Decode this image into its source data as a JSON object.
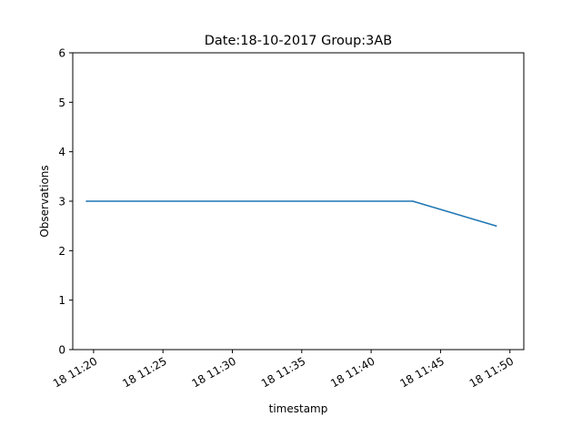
{
  "chart_data": {
    "type": "line",
    "title": "Date:18-10-2017  Group:3AB",
    "xlabel": "timestamp",
    "ylabel": "Observations",
    "x_ticks": [
      {
        "value": "2017-10-18 11:20",
        "label": "18 11:20"
      },
      {
        "value": "2017-10-18 11:25",
        "label": "18 11:25"
      },
      {
        "value": "2017-10-18 11:30",
        "label": "18 11:30"
      },
      {
        "value": "2017-10-18 11:35",
        "label": "18 11:35"
      },
      {
        "value": "2017-10-18 11:40",
        "label": "18 11:40"
      },
      {
        "value": "2017-10-18 11:45",
        "label": "18 11:45"
      },
      {
        "value": "2017-10-18 11:50",
        "label": "18 11:50"
      }
    ],
    "y_ticks": [
      0,
      1,
      2,
      3,
      4,
      5,
      6
    ],
    "xlim": [
      "2017-10-18 11:18:30",
      "2017-10-18 11:51:00"
    ],
    "ylim": [
      0,
      6
    ],
    "grid": false,
    "series": [
      {
        "color": "#1f77b4",
        "points": [
          {
            "x": "2017-10-18 11:19:30",
            "y": 3.0
          },
          {
            "x": "2017-10-18 11:43:00",
            "y": 3.0
          },
          {
            "x": "2017-10-18 11:49:00",
            "y": 2.5
          }
        ]
      }
    ]
  }
}
